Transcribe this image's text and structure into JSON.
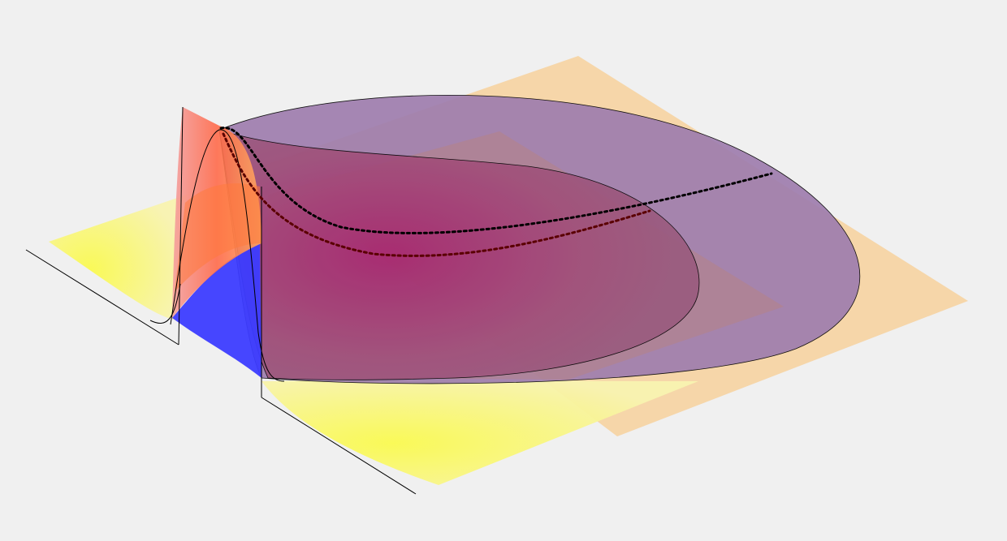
{
  "scene": {
    "background_color": "#f0f0f0",
    "colors": {
      "back_plane": "#f5d4a4",
      "yellow_sheet": "#f8f3a0",
      "yellow_core": "#fafa5a",
      "large_ellipse": "#9f7eae",
      "small_ellipse": "#9a4f78",
      "magenta_core": "#b02a7a",
      "blue_wedge": "#3c3cff",
      "red_peak": "#f08080",
      "orange_band": "#ff8c3c",
      "dotted_curve": "#000000",
      "dotted_curve_inner": "#5a0000",
      "edge_line": "#000000"
    },
    "icons": {
      "large_ellipse": "translucent-ellipse-surface",
      "small_ellipse": "translucent-ellipse-surface",
      "peak": "peaked-profile-surface",
      "dotted_path": "dotted-trajectory"
    }
  }
}
